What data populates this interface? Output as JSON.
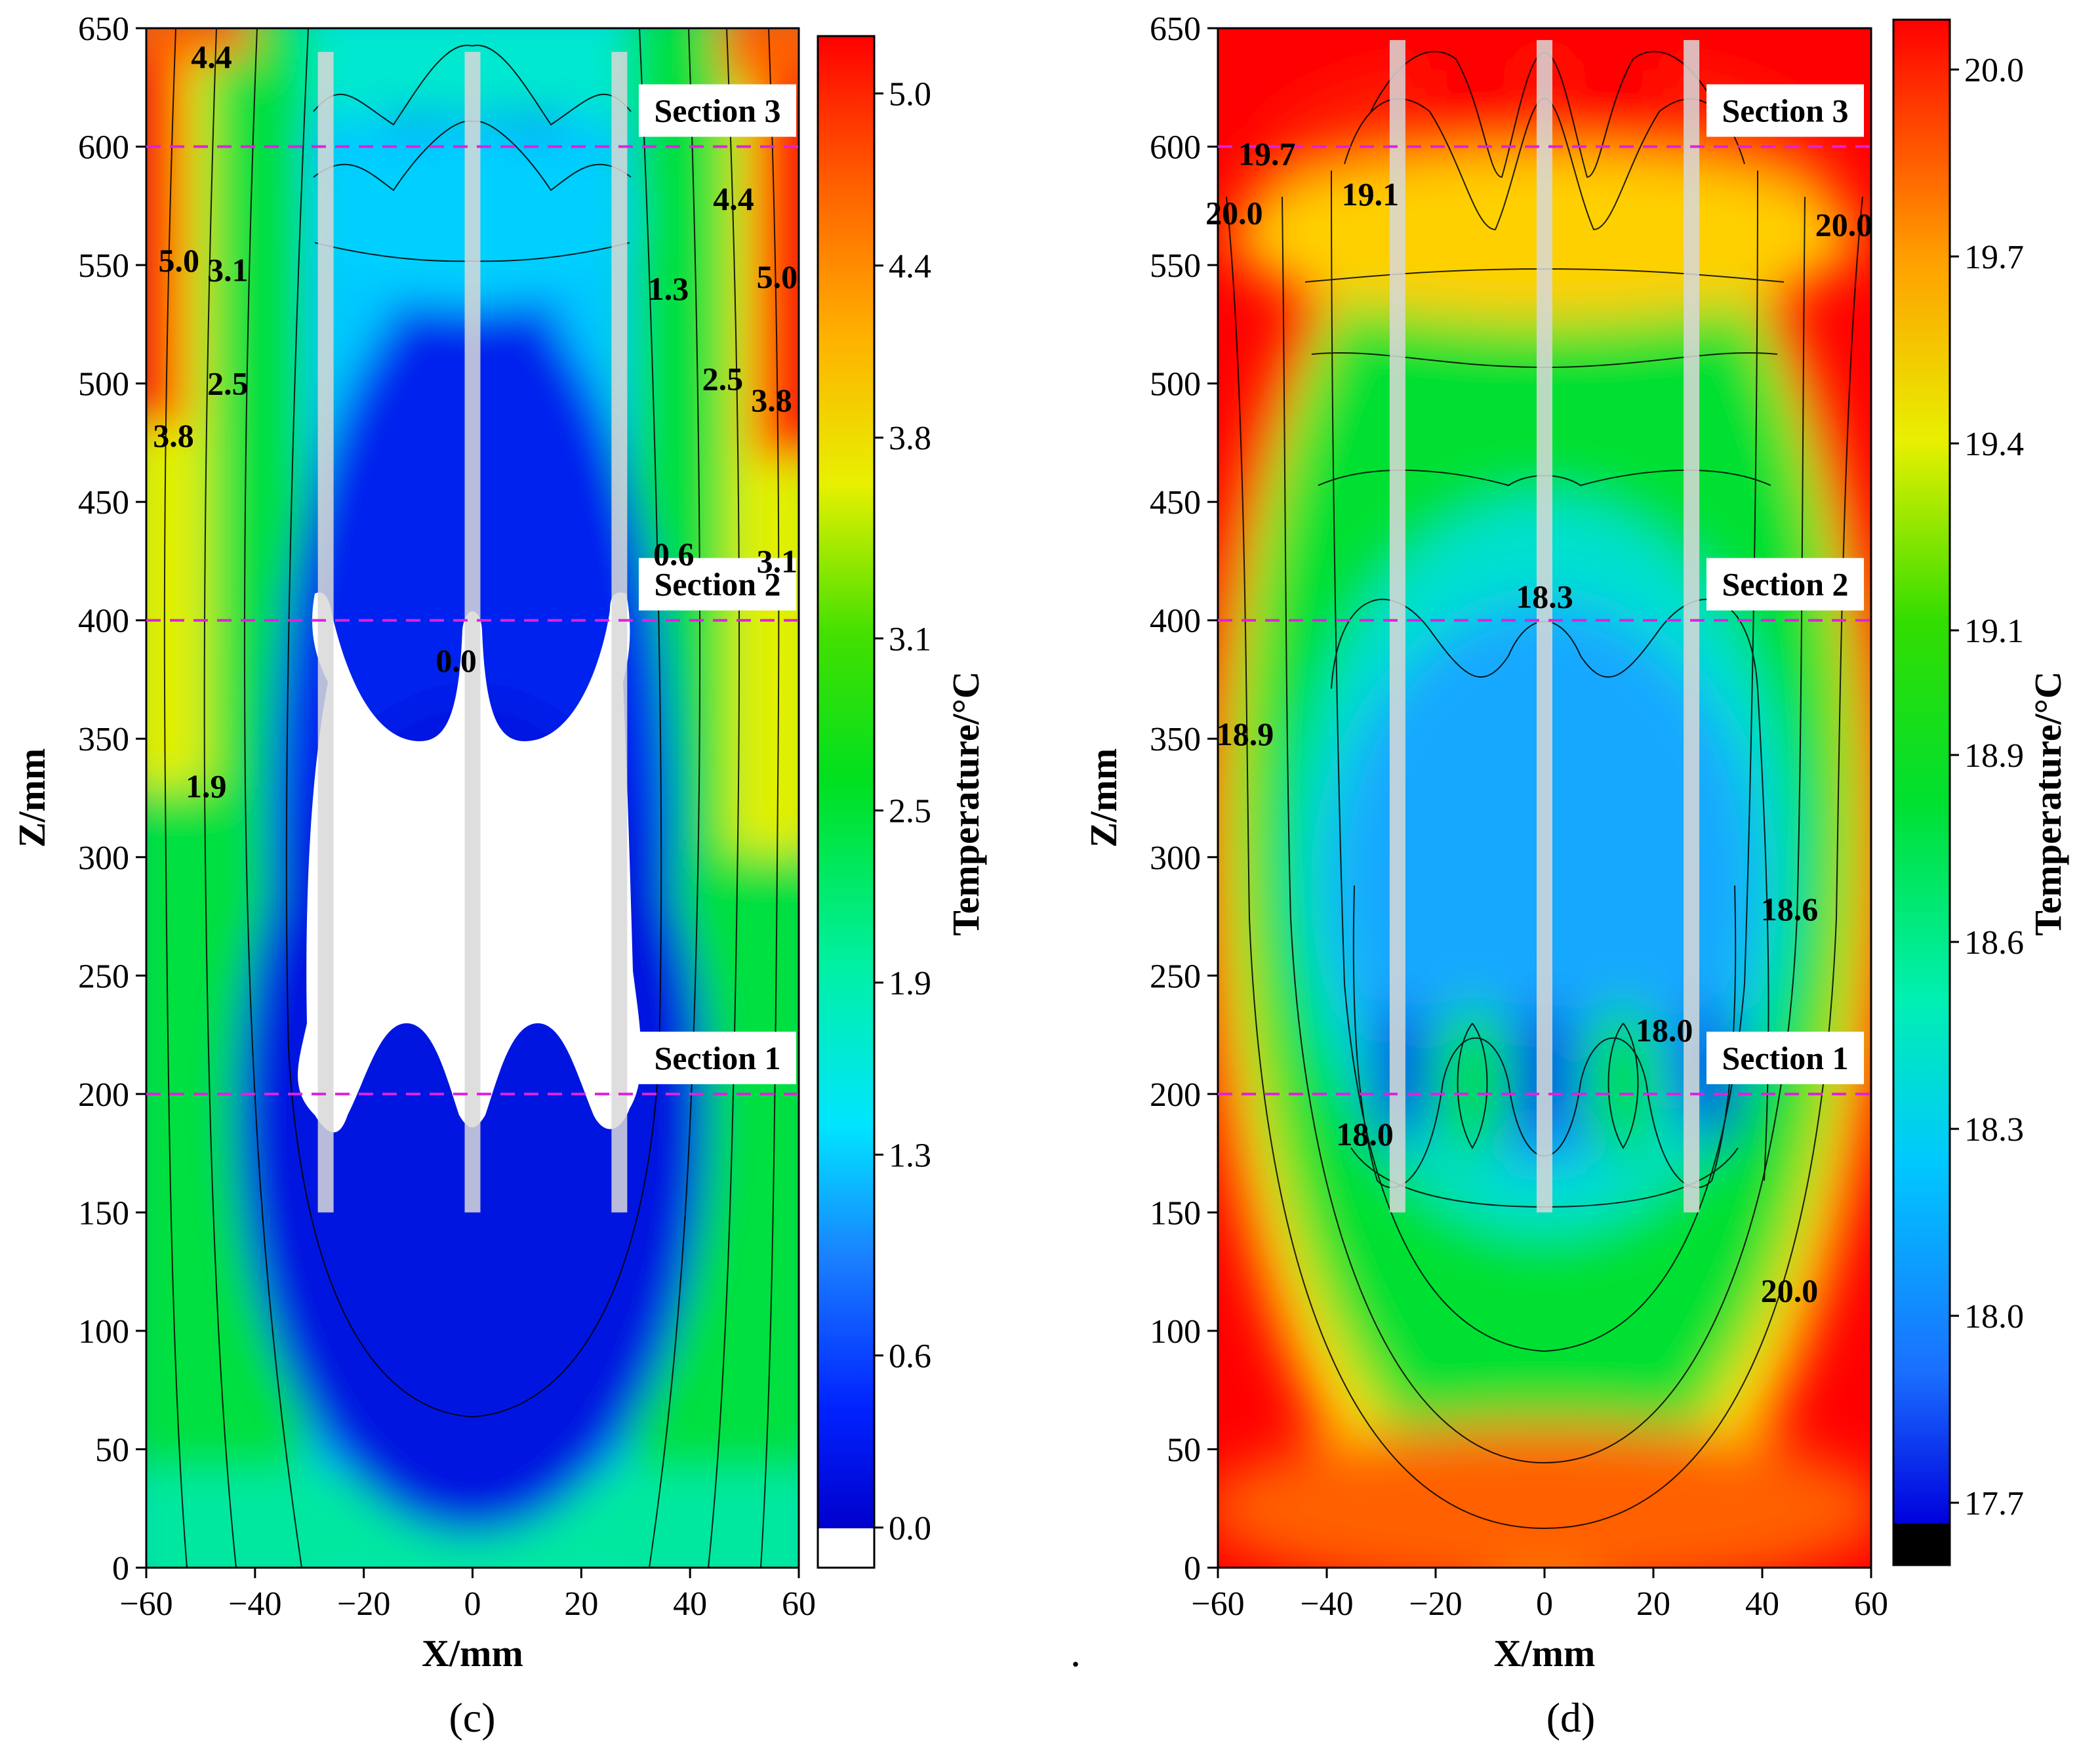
{
  "chart_data": [
    {
      "type": "heatmap",
      "panel_label": "(c)",
      "xlabel": "X/mm",
      "ylabel": "Z/mm",
      "colorbar_label": "Temperature/°C",
      "xlim": [
        -60,
        60
      ],
      "ylim": [
        0,
        650
      ],
      "xticks": [
        -60,
        -40,
        -20,
        0,
        20,
        40,
        60
      ],
      "xtick_labels": [
        "−60",
        "−40",
        "−20",
        "0",
        "20",
        "40",
        "60"
      ],
      "yticks": [
        0,
        50,
        100,
        150,
        200,
        250,
        300,
        350,
        400,
        450,
        500,
        550,
        600,
        650
      ],
      "ytick_labels": [
        "0",
        "50",
        "100",
        "150",
        "200",
        "250",
        "300",
        "350",
        "400",
        "450",
        "500",
        "550",
        "600",
        "650"
      ],
      "colorbar_range": [
        -0.14,
        5.2
      ],
      "colorbar_ticks": [
        0.0,
        0.6,
        1.3,
        1.9,
        2.5,
        3.1,
        3.8,
        4.4,
        5.0
      ],
      "colorbar_tick_labels": [
        "0.0",
        "0.6",
        "1.3",
        "1.9",
        "2.5",
        "3.1",
        "3.8",
        "4.4",
        "5.0"
      ],
      "sections": [
        {
          "name": "Section 1",
          "z": 200
        },
        {
          "name": "Section 2",
          "z": 400
        },
        {
          "name": "Section 3",
          "z": 600
        }
      ],
      "pipes_x": [
        -27,
        0,
        27
      ],
      "pipe_z_range": [
        150,
        640
      ],
      "contour_labels": [
        {
          "text": "4.4",
          "x": -48,
          "z": 638
        },
        {
          "text": "4.4",
          "x": 48,
          "z": 578
        },
        {
          "text": "5.0",
          "x": -54,
          "z": 552
        },
        {
          "text": "3.1",
          "x": -45,
          "z": 548
        },
        {
          "text": "1.3",
          "x": 36,
          "z": 540
        },
        {
          "text": "5.0",
          "x": 56,
          "z": 545
        },
        {
          "text": "2.5",
          "x": -45,
          "z": 500
        },
        {
          "text": "2.5",
          "x": 46,
          "z": 502
        },
        {
          "text": "3.8",
          "x": 55,
          "z": 493
        },
        {
          "text": "3.8",
          "x": -55,
          "z": 478
        },
        {
          "text": "0.6",
          "x": 37,
          "z": 428
        },
        {
          "text": "3.1",
          "x": 56,
          "z": 425
        },
        {
          "text": "0.0",
          "x": -3,
          "z": 383
        },
        {
          "text": "1.9",
          "x": -49,
          "z": 330
        }
      ]
    },
    {
      "type": "heatmap",
      "panel_label": "(d)",
      "xlabel": "X/mm",
      "ylabel": "Z/mm",
      "colorbar_label": "Temperature/°C",
      "xlim": [
        -60,
        60
      ],
      "ylim": [
        0,
        650
      ],
      "xticks": [
        -60,
        -40,
        -20,
        0,
        20,
        40,
        60
      ],
      "xtick_labels": [
        "−60",
        "−40",
        "−20",
        "0",
        "20",
        "40",
        "60"
      ],
      "yticks": [
        0,
        50,
        100,
        150,
        200,
        250,
        300,
        350,
        400,
        450,
        500,
        550,
        600,
        650
      ],
      "ytick_labels": [
        "0",
        "50",
        "100",
        "150",
        "200",
        "250",
        "300",
        "350",
        "400",
        "450",
        "500",
        "550",
        "600",
        "650"
      ],
      "colorbar_range": [
        17.6,
        20.08
      ],
      "colorbar_ticks": [
        17.7,
        18.0,
        18.3,
        18.6,
        18.9,
        19.1,
        19.4,
        19.7,
        20.0
      ],
      "colorbar_tick_labels": [
        "17.7",
        "18.0",
        "18.3",
        "18.6",
        "18.9",
        "19.1",
        "19.4",
        "19.7",
        "20.0"
      ],
      "sections": [
        {
          "name": "Section 1",
          "z": 200
        },
        {
          "name": "Section 2",
          "z": 400
        },
        {
          "name": "Section 3",
          "z": 600
        }
      ],
      "pipes_x": [
        -27,
        0,
        27
      ],
      "pipe_z_range": [
        150,
        645
      ],
      "contour_labels": [
        {
          "text": "19.7",
          "x": -51,
          "z": 597
        },
        {
          "text": "19.1",
          "x": -32,
          "z": 580
        },
        {
          "text": "20.0",
          "x": -57,
          "z": 572
        },
        {
          "text": "20.0",
          "x": 55,
          "z": 567
        },
        {
          "text": "18.3",
          "x": 0,
          "z": 410
        },
        {
          "text": "18.9",
          "x": -55,
          "z": 352
        },
        {
          "text": "18.6",
          "x": 45,
          "z": 278
        },
        {
          "text": "18.0",
          "x": 22,
          "z": 227
        },
        {
          "text": "18.0",
          "x": -33,
          "z": 183
        },
        {
          "text": "20.0",
          "x": 45,
          "z": 117
        }
      ]
    }
  ],
  "separator_dot": "."
}
